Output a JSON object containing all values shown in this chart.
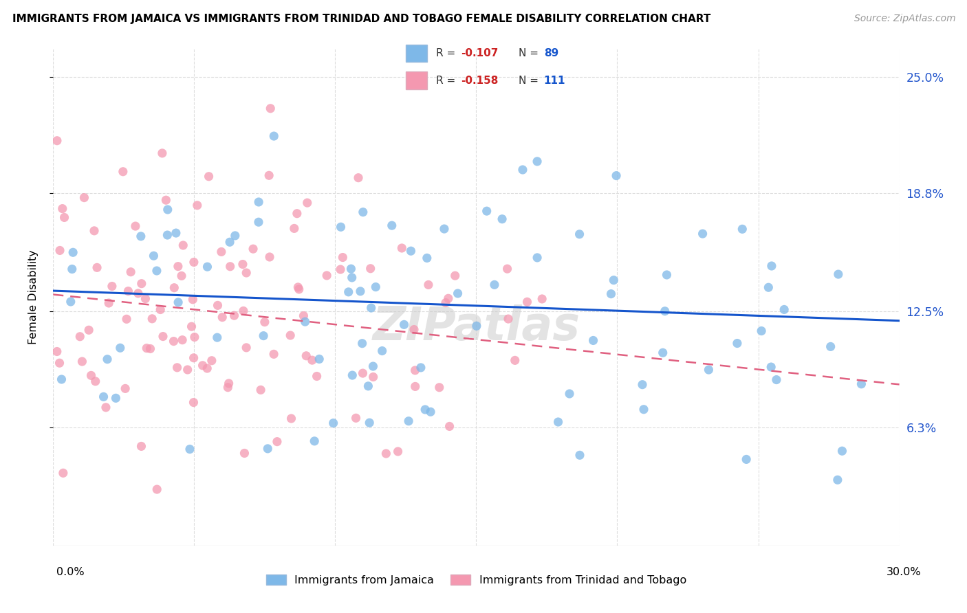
{
  "title": "IMMIGRANTS FROM JAMAICA VS IMMIGRANTS FROM TRINIDAD AND TOBAGO FEMALE DISABILITY CORRELATION CHART",
  "source": "Source: ZipAtlas.com",
  "ylabel": "Female Disability",
  "color_jamaica": "#7EB8E8",
  "color_trinidad": "#F498B0",
  "color_line_jamaica": "#1555CC",
  "color_line_trinidad": "#E06080",
  "label_jamaica": "Immigrants from Jamaica",
  "label_trinidad": "Immigrants from Trinidad and Tobago",
  "xlim": [
    0.0,
    0.3
  ],
  "ylim": [
    0.0,
    0.265
  ],
  "ytick_vals": [
    0.063,
    0.125,
    0.188,
    0.25
  ],
  "ytick_labels": [
    "6.3%",
    "12.5%",
    "18.8%",
    "25.0%"
  ],
  "xtick_vals": [
    0.0,
    0.05,
    0.1,
    0.15,
    0.2,
    0.25,
    0.3
  ],
  "jam_trend_x": [
    0.0,
    0.3
  ],
  "jam_trend_y": [
    0.136,
    0.12
  ],
  "trin_trend_x": [
    0.0,
    0.155
  ],
  "trin_trend_y": [
    0.134,
    0.11
  ],
  "watermark": "ZIPatlas",
  "legend_r1": "-0.107",
  "legend_n1": "89",
  "legend_r2": "-0.158",
  "legend_n2": "111"
}
